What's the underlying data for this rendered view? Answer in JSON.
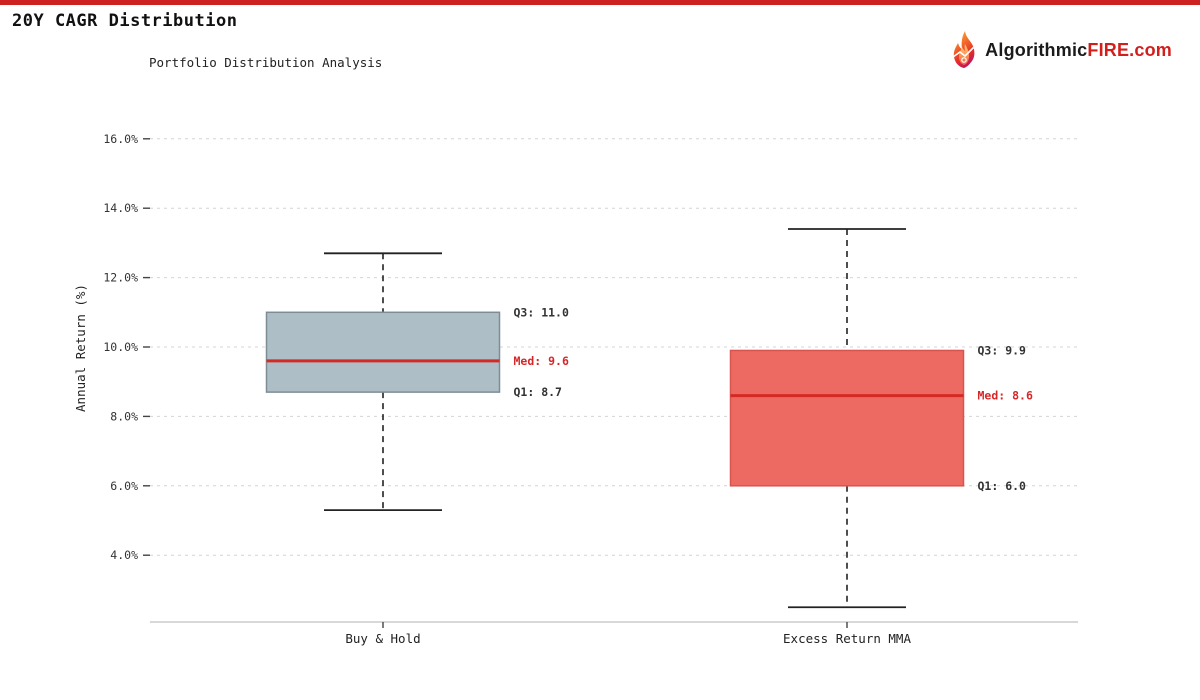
{
  "page": {
    "title": "20Y CAGR Distribution",
    "subtitle": "Portfolio Distribution Analysis"
  },
  "brand": {
    "name_black": "Algorithmic",
    "name_red": "FIRE.com",
    "icon": "flame-icon"
  },
  "colors": {
    "accent_red": "#cc2120",
    "median_line": "#d42a24",
    "median_label": "#d62728",
    "label_dark": "#333333",
    "grid": "#d4d4d4",
    "axis_line": "#c0c0c0",
    "tick": "#444444",
    "whisker": "#222222"
  },
  "chart_data": {
    "type": "boxplot",
    "title": "Portfolio Distribution Analysis",
    "xlabel": "",
    "ylabel": "Annual Return (%)",
    "ylim": [
      2.0,
      17.0
    ],
    "yticks": [
      "16.0%",
      "14.0%",
      "12.0%",
      "10.0%",
      "8.0%",
      "6.0%",
      "4.0%"
    ],
    "grid": true,
    "legend": "none",
    "categories": [
      "Buy & Hold",
      "Excess Return MMA"
    ],
    "series": [
      {
        "name": "Buy & Hold",
        "whisker_low": 5.3,
        "q1": 8.7,
        "median": 9.6,
        "q3": 11.0,
        "whisker_high": 12.7,
        "fill": "#adbec7",
        "border": "#7e8c96",
        "labels": {
          "q3": "Q3: 11.0",
          "med": "Med: 9.6",
          "q1": "Q1: 8.7"
        }
      },
      {
        "name": "Excess Return MMA",
        "whisker_low": 2.5,
        "q1": 6.0,
        "median": 8.6,
        "q3": 9.9,
        "whisker_high": 13.4,
        "fill": "#ec6a62",
        "border": "#d9534f",
        "labels": {
          "q3": "Q3: 9.9",
          "med": "Med: 8.6",
          "q1": "Q1: 6.0"
        }
      }
    ]
  }
}
